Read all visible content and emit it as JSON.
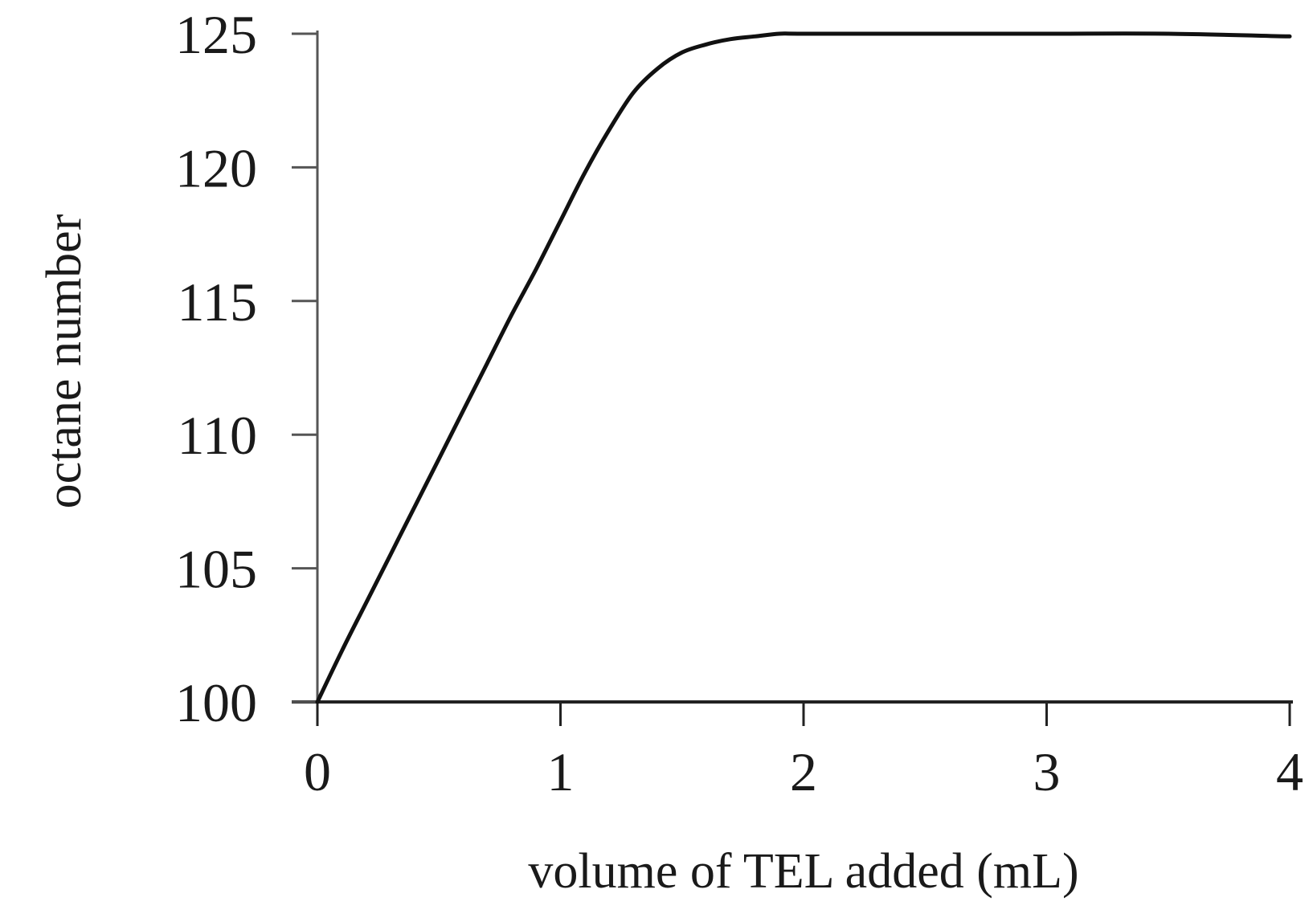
{
  "chart_data": {
    "type": "line",
    "title": "",
    "xlabel": "volume of TEL added (mL)",
    "ylabel": "octane number",
    "xlim": [
      0,
      4
    ],
    "ylim": [
      100,
      125
    ],
    "xticks": [
      "0",
      "1",
      "2",
      "3",
      "4"
    ],
    "yticks": [
      "100",
      "105",
      "110",
      "115",
      "120",
      "125"
    ],
    "grid": false,
    "legend": "none",
    "series": [
      {
        "color": "#111111",
        "x": [
          0,
          0.1,
          0.2,
          0.3,
          0.4,
          0.5,
          0.6,
          0.7,
          0.8,
          0.9,
          1.0,
          1.1,
          1.2,
          1.3,
          1.4,
          1.5,
          1.6,
          1.7,
          1.8,
          1.9,
          2.0,
          2.5,
          3.0,
          3.5,
          4.0
        ],
        "y": [
          100,
          101.9,
          103.7,
          105.5,
          107.3,
          109.1,
          110.9,
          112.7,
          114.5,
          116.2,
          118.0,
          119.8,
          121.4,
          122.8,
          123.7,
          124.3,
          124.6,
          124.8,
          124.9,
          125.0,
          125.0,
          125.0,
          125.0,
          125.0,
          124.9
        ]
      }
    ]
  },
  "colors": {
    "axis": "#555555",
    "curve": "#111111",
    "text": "#1a1a1a"
  }
}
